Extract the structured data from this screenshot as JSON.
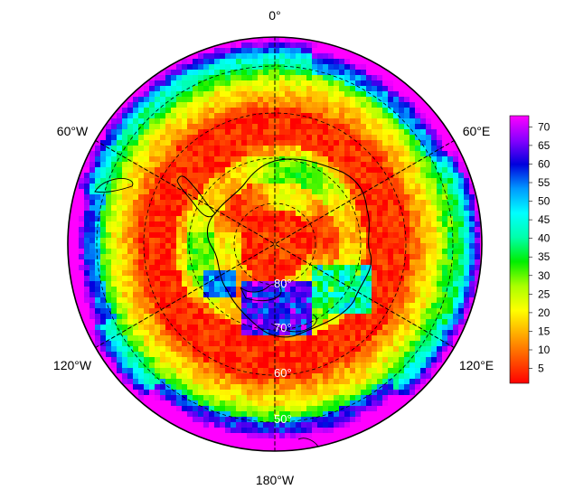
{
  "map": {
    "projection": "south polar stereographic",
    "meridian_labels": {
      "top": "0°",
      "upper_left": "60°W",
      "upper_right": "60°E",
      "lower_left": "120°W",
      "lower_right": "120°E",
      "bottom": "180°W"
    },
    "parallel_labels": [
      "80°",
      "70°",
      "60°",
      "50°"
    ],
    "parallels_deg": [
      80,
      70,
      60,
      50
    ],
    "graticule_style": "dashed black",
    "coastline": "Antarctica outline in black"
  },
  "colorbar": {
    "ticks": [
      "5",
      "10",
      "15",
      "20",
      "25",
      "30",
      "35",
      "40",
      "45",
      "50",
      "55",
      "60",
      "65",
      "70"
    ],
    "min": 1,
    "max": 73,
    "colors": [
      "#ff0000",
      "#ff5500",
      "#ffaa00",
      "#ffff00",
      "#aaff00",
      "#00ee00",
      "#00ffaa",
      "#00ffff",
      "#0099ff",
      "#0000dd",
      "#8800ff",
      "#ff00ff"
    ]
  }
}
